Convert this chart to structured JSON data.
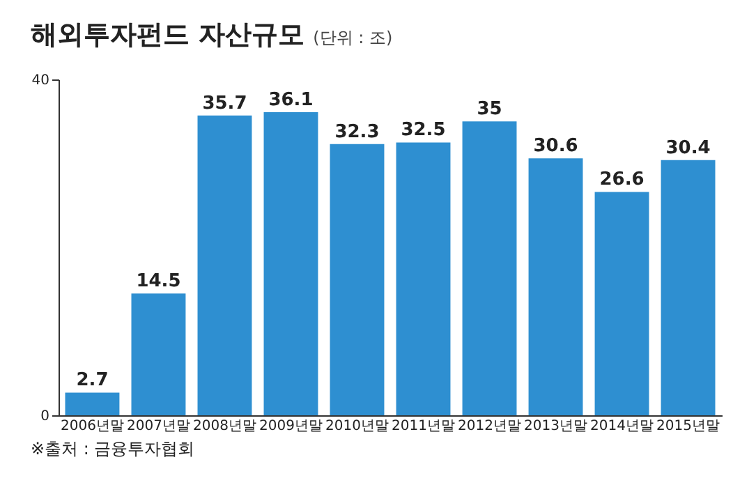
{
  "chart_data": {
    "type": "bar",
    "title": "해외투자펀드 자산규모",
    "subtitle": "(단위 : 조)",
    "annotations": [
      "※출처 : 금융투자협회"
    ],
    "categories": [
      "2006년말",
      "2007년말",
      "2008년말",
      "2009년말",
      "2010년말",
      "2011년말",
      "2012년말",
      "2013년말",
      "2014년말",
      "2015년말"
    ],
    "values": [
      2.7,
      14.5,
      35.7,
      36.1,
      32.3,
      32.5,
      35,
      30.6,
      26.6,
      30.4
    ],
    "color": "#2e8fd1",
    "ylim": [
      0,
      40
    ],
    "yticks": [
      0,
      40
    ],
    "data_labels": true
  }
}
